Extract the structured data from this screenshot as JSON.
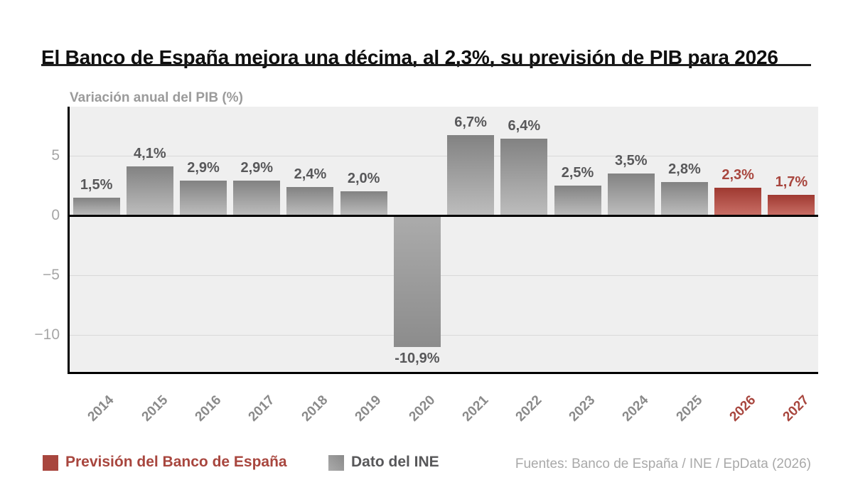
{
  "title": "El Banco de España mejora una décima, al 2,3%, su previsión de PIB para 2026",
  "subtitle": "Variación anual del PIB (%)",
  "legend": {
    "forecast_label": "Previsión del Banco de España",
    "ine_label": "Dato del INE"
  },
  "source": "Fuentes: Banco de España / INE / EpData (2026)",
  "colors": {
    "forecast_red": "#a8463e",
    "forecast_bar_top": "#9f3931",
    "forecast_bar_bottom": "#c96f66",
    "ine_bar_top": "#828282",
    "ine_bar_bottom": "#bdbdbd",
    "value_label_gray": "#58585a",
    "axis_label_gray": "#a6a6a6",
    "year_label_gray": "#8a8a8a",
    "plot_background": "#efefef"
  },
  "chart_data": {
    "type": "bar",
    "title": "Variación anual del PIB (%)",
    "categories": [
      "2014",
      "2015",
      "2016",
      "2017",
      "2018",
      "2019",
      "2020",
      "2021",
      "2022",
      "2023",
      "2024",
      "2025",
      "2026",
      "2027"
    ],
    "values": [
      1.5,
      4.1,
      2.9,
      2.9,
      2.4,
      2.0,
      -10.9,
      6.7,
      6.4,
      2.5,
      3.5,
      2.8,
      2.3,
      1.7
    ],
    "value_labels": [
      "1,5%",
      "4,1%",
      "2,9%",
      "2,9%",
      "2,4%",
      "2,0%",
      "-10,9%",
      "6,7%",
      "6,4%",
      "2,5%",
      "3,5%",
      "2,8%",
      "2,3%",
      "1,7%"
    ],
    "forecast": [
      false,
      false,
      false,
      false,
      false,
      false,
      false,
      false,
      false,
      false,
      false,
      false,
      true,
      true
    ],
    "series": [
      {
        "name": "Previsión del Banco de España",
        "years": [
          "2026",
          "2027"
        ],
        "values": [
          2.3,
          1.7
        ]
      },
      {
        "name": "Dato del INE",
        "years": [
          "2014",
          "2015",
          "2016",
          "2017",
          "2018",
          "2019",
          "2020",
          "2021",
          "2022",
          "2023",
          "2024",
          "2025"
        ],
        "values": [
          1.5,
          4.1,
          2.9,
          2.9,
          2.4,
          2.0,
          -10.9,
          6.7,
          6.4,
          2.5,
          3.5,
          2.8
        ]
      }
    ],
    "yticks": [
      {
        "value": 5,
        "label": "5"
      },
      {
        "value": 0,
        "label": "0"
      },
      {
        "value": -5,
        "label": "−5"
      },
      {
        "value": -10,
        "label": "−10"
      }
    ],
    "xlabel": "",
    "ylabel": "Variación anual del PIB (%)",
    "ylim": [
      -13.2,
      9.1
    ],
    "grid": true,
    "legend_position": "bottom"
  }
}
